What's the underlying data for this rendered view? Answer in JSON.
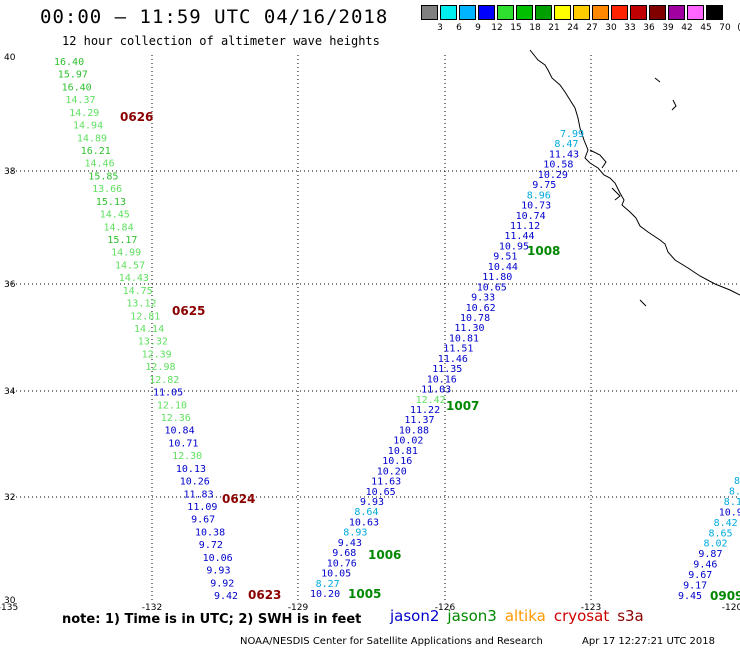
{
  "header": {
    "title": "00:00 – 11:59 UTC 04/16/2018",
    "subtitle": "12 hour collection of altimeter wave heights"
  },
  "legend": {
    "colors": [
      "#808080",
      "#00eeee",
      "#00b4ff",
      "#0000ff",
      "#30e030",
      "#00c000",
      "#00a000",
      "#ffff00",
      "#ffcc00",
      "#ff8800",
      "#ff2200",
      "#c00000",
      "#800000",
      "#a000a0",
      "#ff66ff",
      "#000000"
    ],
    "labels": [
      "3",
      "6",
      "9",
      "12",
      "15",
      "18",
      "21",
      "24",
      "27",
      "30",
      "33",
      "36",
      "39",
      "42",
      "45",
      "70",
      "(ft)"
    ]
  },
  "axes": {
    "lon_labels": [
      "-135",
      "-132",
      "-129",
      "-126",
      "-123",
      "-120"
    ],
    "lat_labels": [
      "40",
      "38",
      "36",
      "34",
      "32",
      "30"
    ]
  },
  "satellites": [
    {
      "name": "jason2",
      "color": "#0000cc"
    },
    {
      "name": "jason3",
      "color": "#008800"
    },
    {
      "name": "altika",
      "color": "#ff9900"
    },
    {
      "name": "cryosat",
      "color": "#cc0000"
    },
    {
      "name": "s3a",
      "color": "#8b0000"
    }
  ],
  "note": "note:  1) Time is in UTC;  2) SWH is in feet",
  "credit": "NOAA/NESDIS Center for Satellite Applications and Research",
  "stamp": "Apr 17 12:27:21 UTC 2018",
  "pass_codes": [
    {
      "text": "0626",
      "color": "#8b0000"
    },
    {
      "text": "0625",
      "color": "#8b0000"
    },
    {
      "text": "0624",
      "color": "#8b0000"
    },
    {
      "text": "0623",
      "color": "#8b0000"
    },
    {
      "text": "1008",
      "color": "#008800"
    },
    {
      "text": "1007",
      "color": "#008800"
    },
    {
      "text": "1006",
      "color": "#008800"
    },
    {
      "text": "1005",
      "color": "#008800"
    },
    {
      "text": "0909",
      "color": "#008800"
    }
  ],
  "tracks": {
    "west": [
      {
        "v": "16.40",
        "c": "#30c030"
      },
      {
        "v": "15.97",
        "c": "#30c030"
      },
      {
        "v": "16.40",
        "c": "#30c030"
      },
      {
        "v": "14.37",
        "c": "#60e060"
      },
      {
        "v": "14.29",
        "c": "#60e060"
      },
      {
        "v": "14.94",
        "c": "#60e060"
      },
      {
        "v": "14.89",
        "c": "#60e060"
      },
      {
        "v": "16.21",
        "c": "#30c030"
      },
      {
        "v": "14.46",
        "c": "#60e060"
      },
      {
        "v": "15.85",
        "c": "#30c030"
      },
      {
        "v": "13.66",
        "c": "#60e060"
      },
      {
        "v": "15.13",
        "c": "#30c030"
      },
      {
        "v": "14.45",
        "c": "#60e060"
      },
      {
        "v": "14.84",
        "c": "#60e060"
      },
      {
        "v": "15.17",
        "c": "#30c030"
      },
      {
        "v": "14.99",
        "c": "#60e060"
      },
      {
        "v": "14.57",
        "c": "#60e060"
      },
      {
        "v": "14.43",
        "c": "#60e060"
      },
      {
        "v": "14.75",
        "c": "#60e060"
      },
      {
        "v": "13.12",
        "c": "#60e060"
      },
      {
        "v": "12.81",
        "c": "#60e060"
      },
      {
        "v": "14.14",
        "c": "#60e060"
      },
      {
        "v": "13.32",
        "c": "#60e060"
      },
      {
        "v": "12.39",
        "c": "#60e060"
      },
      {
        "v": "12.98",
        "c": "#60e060"
      },
      {
        "v": "12.82",
        "c": "#60e060"
      },
      {
        "v": "11.05",
        "c": "#0000cc"
      },
      {
        "v": "12.10",
        "c": "#60e060"
      },
      {
        "v": "12.36",
        "c": "#60e060"
      },
      {
        "v": "10.84",
        "c": "#0000cc"
      },
      {
        "v": "10.71",
        "c": "#0000cc"
      },
      {
        "v": "12.30",
        "c": "#60e060"
      },
      {
        "v": "10.13",
        "c": "#0000cc"
      },
      {
        "v": "10.26",
        "c": "#0000cc"
      },
      {
        "v": "11.83",
        "c": "#0000cc"
      },
      {
        "v": "11.09",
        "c": "#0000cc"
      },
      {
        "v": "9.67",
        "c": "#0000cc"
      },
      {
        "v": "10.38",
        "c": "#0000cc"
      },
      {
        "v": "9.72",
        "c": "#0000cc"
      },
      {
        "v": "10.06",
        "c": "#0000cc"
      },
      {
        "v": "9.93",
        "c": "#0000cc"
      },
      {
        "v": "9.92",
        "c": "#0000cc"
      },
      {
        "v": "9.42",
        "c": "#0000cc"
      }
    ],
    "middle": [
      {
        "v": "7.99",
        "c": "#00aadd"
      },
      {
        "v": "8.47",
        "c": "#00aadd"
      },
      {
        "v": "11.43",
        "c": "#0000cc"
      },
      {
        "v": "10.58",
        "c": "#0000cc"
      },
      {
        "v": "10.29",
        "c": "#0000cc"
      },
      {
        "v": "9.75",
        "c": "#0000cc"
      },
      {
        "v": "8.96",
        "c": "#00aadd"
      },
      {
        "v": "10.73",
        "c": "#0000cc"
      },
      {
        "v": "10.74",
        "c": "#0000cc"
      },
      {
        "v": "11.12",
        "c": "#0000cc"
      },
      {
        "v": "11.44",
        "c": "#0000cc"
      },
      {
        "v": "10.95",
        "c": "#0000cc"
      },
      {
        "v": "9.51",
        "c": "#0000cc"
      },
      {
        "v": "10.44",
        "c": "#0000cc"
      },
      {
        "v": "11.80",
        "c": "#0000cc"
      },
      {
        "v": "10.65",
        "c": "#0000cc"
      },
      {
        "v": "9.33",
        "c": "#0000cc"
      },
      {
        "v": "10.62",
        "c": "#0000cc"
      },
      {
        "v": "10.78",
        "c": "#0000cc"
      },
      {
        "v": "11.30",
        "c": "#0000cc"
      },
      {
        "v": "10.81",
        "c": "#0000cc"
      },
      {
        "v": "11.51",
        "c": "#0000cc"
      },
      {
        "v": "11.46",
        "c": "#0000cc"
      },
      {
        "v": "11.35",
        "c": "#0000cc"
      },
      {
        "v": "10.16",
        "c": "#0000cc"
      },
      {
        "v": "11.03",
        "c": "#0000cc"
      },
      {
        "v": "12.42",
        "c": "#60e060"
      },
      {
        "v": "11.22",
        "c": "#0000cc"
      },
      {
        "v": "11.37",
        "c": "#0000cc"
      },
      {
        "v": "10.88",
        "c": "#0000cc"
      },
      {
        "v": "10.02",
        "c": "#0000cc"
      },
      {
        "v": "10.81",
        "c": "#0000cc"
      },
      {
        "v": "10.16",
        "c": "#0000cc"
      },
      {
        "v": "10.20",
        "c": "#0000cc"
      },
      {
        "v": "11.63",
        "c": "#0000cc"
      },
      {
        "v": "10.65",
        "c": "#0000cc"
      },
      {
        "v": "9.93",
        "c": "#0000cc"
      },
      {
        "v": "8.64",
        "c": "#00aadd"
      },
      {
        "v": "10.63",
        "c": "#0000cc"
      },
      {
        "v": "8.93",
        "c": "#00aadd"
      },
      {
        "v": "9.43",
        "c": "#0000cc"
      },
      {
        "v": "9.68",
        "c": "#0000cc"
      },
      {
        "v": "10.76",
        "c": "#0000cc"
      },
      {
        "v": "10.05",
        "c": "#0000cc"
      },
      {
        "v": "8.27",
        "c": "#00aadd"
      },
      {
        "v": "10.20",
        "c": "#0000cc"
      }
    ],
    "east": [
      {
        "v": "8",
        "c": "#00aadd"
      },
      {
        "v": "8.7",
        "c": "#00aadd"
      },
      {
        "v": "8.1",
        "c": "#00aadd"
      },
      {
        "v": "10.97",
        "c": "#0000cc"
      },
      {
        "v": "8.42",
        "c": "#00aadd"
      },
      {
        "v": "8.65",
        "c": "#00aadd"
      },
      {
        "v": "8.02",
        "c": "#00aadd"
      },
      {
        "v": "9.87",
        "c": "#0000cc"
      },
      {
        "v": "9.46",
        "c": "#0000cc"
      },
      {
        "v": "9.67",
        "c": "#0000cc"
      },
      {
        "v": "9.17",
        "c": "#0000cc"
      },
      {
        "v": "9.45",
        "c": "#0000cc"
      }
    ]
  }
}
